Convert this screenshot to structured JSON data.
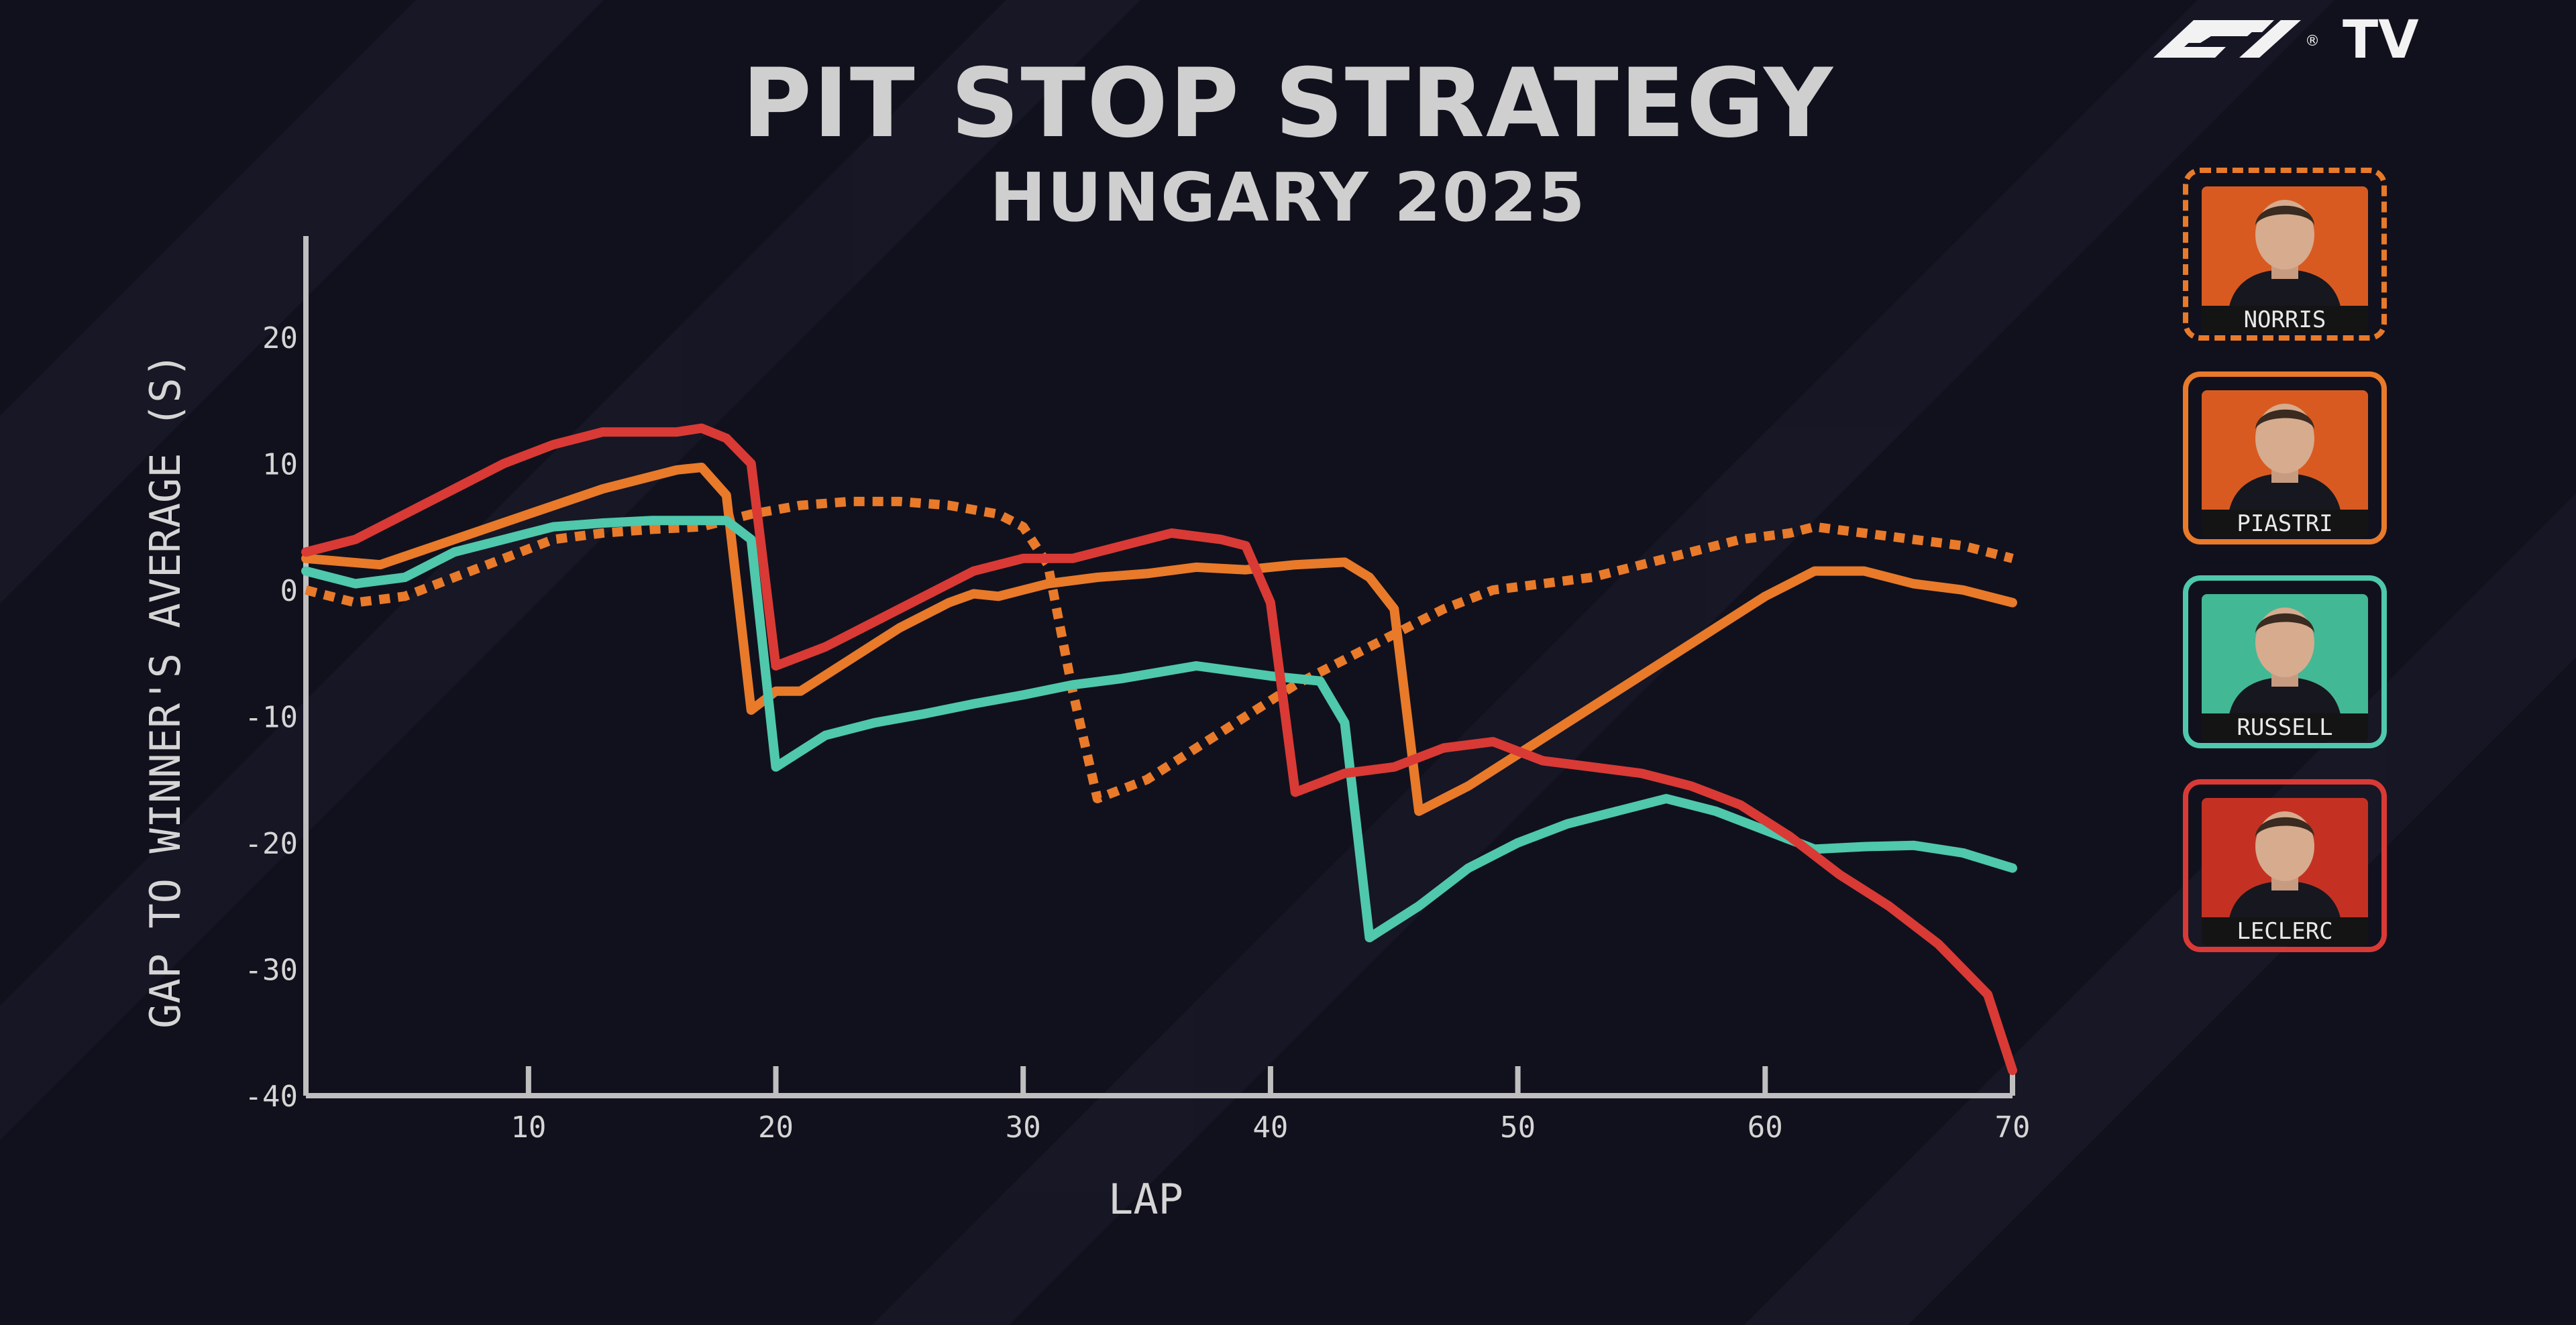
{
  "brand": {
    "logo_text": "F1",
    "service": "TV"
  },
  "chart_data": {
    "type": "line",
    "title": "PIT STOP STRATEGY",
    "subtitle": "HUNGARY 2025",
    "xlabel": "LAP",
    "ylabel": "GAP TO WINNER'S AVERAGE (S)",
    "xlim": [
      1,
      70
    ],
    "ylim": [
      -40,
      28
    ],
    "xticks": [
      10,
      20,
      30,
      40,
      50,
      60,
      70
    ],
    "yticks": [
      20,
      10,
      0,
      -10,
      -20,
      -30,
      -40
    ],
    "grid": false,
    "legend_position": "right",
    "series": [
      {
        "name": "NORRIS",
        "color": "#e87a2a",
        "style": "dotted",
        "x": [
          1,
          3,
          5,
          7,
          9,
          11,
          13,
          15,
          17,
          19,
          21,
          23,
          25,
          27,
          29,
          30,
          31,
          32,
          33,
          35,
          37,
          39,
          41,
          43,
          45,
          47,
          49,
          51,
          53,
          55,
          57,
          59,
          61,
          62,
          64,
          66,
          68,
          70
        ],
        "y": [
          0,
          -1,
          -0.5,
          1,
          2.5,
          4,
          4.5,
          4.8,
          5,
          6,
          6.7,
          7,
          7,
          6.7,
          6,
          5,
          2,
          -8,
          -16.5,
          -15,
          -12.5,
          -10,
          -7.5,
          -5.5,
          -3.5,
          -1.5,
          0,
          0.5,
          1,
          2,
          3,
          4,
          4.5,
          5,
          4.5,
          4,
          3.5,
          2.5
        ]
      },
      {
        "name": "PIASTRI",
        "color": "#e87a2a",
        "style": "solid",
        "x": [
          1,
          4,
          7,
          10,
          13,
          16,
          17,
          18,
          19,
          20,
          21,
          23,
          25,
          27,
          28,
          29,
          31,
          33,
          35,
          37,
          39,
          41,
          43,
          44,
          45,
          46,
          48,
          50,
          52,
          54,
          56,
          58,
          60,
          61,
          62,
          64,
          66,
          68,
          70
        ],
        "y": [
          2.5,
          2,
          4,
          6,
          8,
          9.5,
          9.7,
          7.5,
          -9.5,
          -8,
          -8,
          -5.5,
          -3,
          -1,
          -0.3,
          -0.5,
          0.5,
          1,
          1.3,
          1.8,
          1.6,
          2,
          2.2,
          1,
          -1.5,
          -17.5,
          -15.5,
          -13,
          -10.5,
          -8,
          -5.5,
          -3,
          -0.5,
          0.5,
          1.5,
          1.5,
          0.5,
          0,
          -1
        ]
      },
      {
        "name": "RUSSELL",
        "color": "#4fc8ac",
        "style": "solid",
        "x": [
          1,
          3,
          5,
          7,
          9,
          11,
          13,
          15,
          17,
          18,
          19,
          20,
          22,
          24,
          26,
          28,
          30,
          32,
          34,
          37,
          40,
          42,
          43,
          44,
          46,
          48,
          50,
          52,
          54,
          56,
          58,
          60,
          62,
          64,
          66,
          68,
          70
        ],
        "y": [
          1.5,
          0.5,
          1,
          3,
          4,
          5,
          5.3,
          5.5,
          5.5,
          5.5,
          4,
          -14,
          -11.5,
          -10.5,
          -9.8,
          -9,
          -8.3,
          -7.5,
          -7,
          -6,
          -6.8,
          -7.2,
          -10.5,
          -27.5,
          -25,
          -22,
          -20,
          -18.5,
          -17.5,
          -16.5,
          -17.5,
          -19,
          -20.5,
          -20.3,
          -20.2,
          -20.8,
          -22
        ]
      },
      {
        "name": "LECLERC",
        "color": "#d93a35",
        "style": "solid",
        "x": [
          1,
          3,
          5,
          7,
          9,
          11,
          13,
          14,
          15,
          16,
          17,
          18,
          19,
          20,
          22,
          24,
          26,
          28,
          30,
          32,
          34,
          36,
          38,
          39,
          40,
          41,
          43,
          45,
          47,
          49,
          51,
          53,
          55,
          57,
          59,
          61,
          63,
          65,
          67,
          69,
          70
        ],
        "y": [
          3,
          4,
          6,
          8,
          10,
          11.5,
          12.5,
          12.5,
          12.5,
          12.5,
          12.8,
          12,
          10,
          -6,
          -4.5,
          -2.5,
          -0.5,
          1.5,
          2.5,
          2.5,
          3.5,
          4.5,
          4,
          3.5,
          -1,
          -16,
          -14.5,
          -14,
          -12.5,
          -12,
          -13.5,
          -14,
          -14.5,
          -15.5,
          -17,
          -19.5,
          -22.5,
          -25,
          -28,
          -32,
          -38
        ]
      }
    ]
  },
  "legend": [
    {
      "name": "NORRIS",
      "border_color": "#e87a2a",
      "border_style": "dashed",
      "photo_bg": "#d95a20"
    },
    {
      "name": "PIASTRI",
      "border_color": "#e87a2a",
      "border_style": "solid",
      "photo_bg": "#d95a20"
    },
    {
      "name": "RUSSELL",
      "border_color": "#4fc8ac",
      "border_style": "solid",
      "photo_bg": "#43b894"
    },
    {
      "name": "LECLERC",
      "border_color": "#d93a35",
      "border_style": "solid",
      "photo_bg": "#c43122"
    }
  ]
}
